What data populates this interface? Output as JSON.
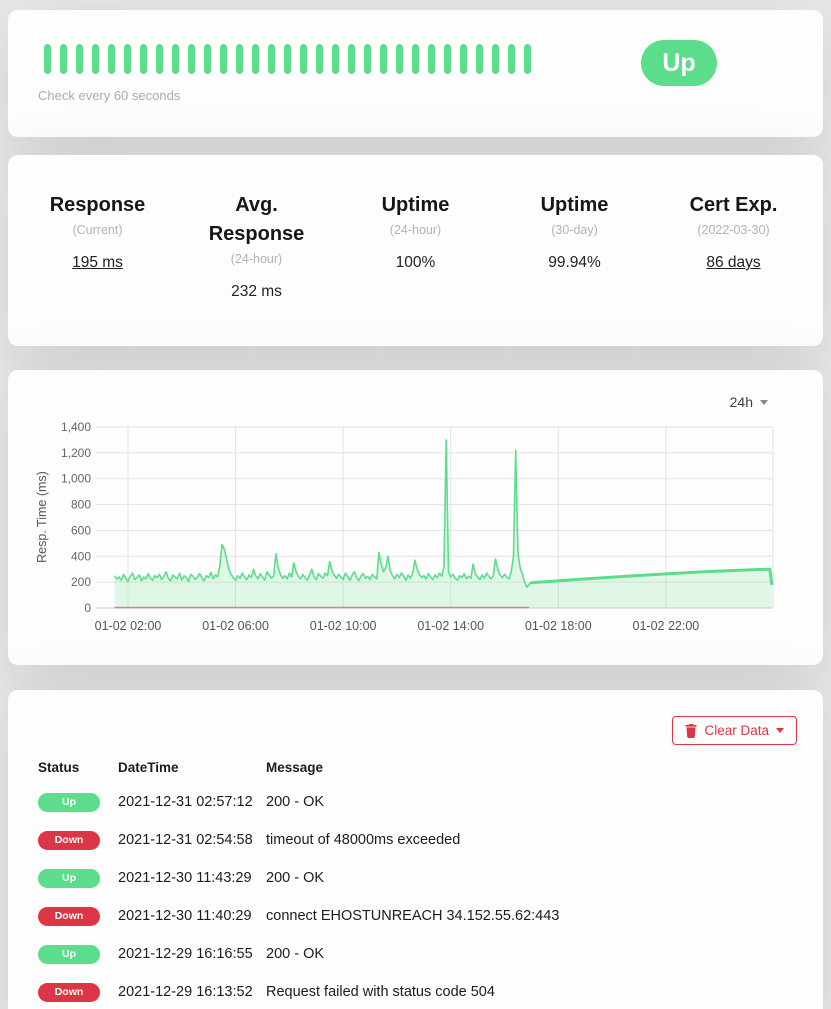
{
  "colors": {
    "green": "#5cdd8b",
    "red": "#dc3545",
    "fill": "rgba(92,221,139,0.18)",
    "grid": "#e3e3e3",
    "tick_text": "#666666"
  },
  "monitor": {
    "status_label": "Up",
    "check_interval": "Check every 60 seconds",
    "beat_count": 31
  },
  "stats": {
    "items": [
      {
        "title": "Response",
        "subtitle": "(Current)",
        "value": "195 ms",
        "underline": true
      },
      {
        "title": "Avg. Response",
        "subtitle": "(24-hour)",
        "value": "232 ms",
        "underline": false
      },
      {
        "title": "Uptime",
        "subtitle": "(24-hour)",
        "value": "100%",
        "underline": false
      },
      {
        "title": "Uptime",
        "subtitle": "(30-day)",
        "value": "99.94%",
        "underline": false
      },
      {
        "title": "Cert Exp.",
        "subtitle": "(2022-03-30)",
        "value": "86 days",
        "underline": true
      }
    ]
  },
  "chart": {
    "period_label": "24h"
  },
  "chart_data": {
    "type": "area",
    "title": "",
    "xlabel": "",
    "ylabel": "Resp. Time (ms)",
    "ylim": [
      0,
      1400
    ],
    "yticks": [
      0,
      200,
      400,
      600,
      800,
      1000,
      1200,
      1400
    ],
    "x_domain_minutes": [
      62,
      1559
    ],
    "xticks": [
      {
        "minute": 120,
        "label": "01-02 02:00"
      },
      {
        "minute": 360,
        "label": "01-02 06:00"
      },
      {
        "minute": 600,
        "label": "01-02 10:00"
      },
      {
        "minute": 840,
        "label": "01-02 14:00"
      },
      {
        "minute": 1080,
        "label": "01-02 18:00"
      },
      {
        "minute": 1320,
        "label": "01-02 22:00"
      }
    ],
    "grid": true,
    "legend": "none",
    "series": [
      {
        "name": "response-raw",
        "start_min": 90,
        "step_min": 5,
        "values": [
          250,
          225,
          240,
          215,
          260,
          230,
          205,
          245,
          270,
          220,
          235,
          255,
          210,
          240,
          225,
          265,
          230,
          215,
          250,
          235,
          260,
          220,
          245,
          280,
          230,
          210,
          255,
          240,
          225,
          270,
          215,
          250,
          235,
          205,
          260,
          245,
          220,
          240,
          265,
          230,
          210,
          250,
          235,
          275,
          225,
          255,
          240,
          330,
          490,
          455,
          380,
          300,
          260,
          235,
          215,
          250,
          230,
          270,
          240,
          220,
          255,
          235,
          300,
          250,
          225,
          265,
          240,
          215,
          280,
          255,
          230,
          245,
          420,
          310,
          260,
          230,
          250,
          225,
          270,
          240,
          350,
          280,
          245,
          225,
          260,
          235,
          215,
          255,
          300,
          240,
          220,
          265,
          245,
          230,
          270,
          250,
          360,
          290,
          255,
          230,
          260,
          240,
          220,
          270,
          245,
          215,
          255,
          280,
          235,
          210,
          250,
          265,
          230,
          245,
          220,
          260,
          240,
          225,
          430,
          340,
          280,
          310,
          400,
          290,
          250,
          225,
          260,
          235,
          270,
          245,
          215,
          255,
          230,
          265,
          370,
          300,
          260,
          235,
          250,
          225,
          265,
          240,
          220,
          255,
          235,
          270,
          245,
          320,
          1300,
          280,
          240,
          260,
          230,
          215,
          250,
          235,
          265,
          225,
          245,
          230,
          340,
          260,
          240,
          220,
          255,
          230,
          270,
          245,
          225,
          250,
          380,
          300,
          255,
          235,
          260,
          240,
          225,
          280,
          400,
          1220,
          420,
          310,
          260,
          200,
          160,
          185,
          195
        ]
      },
      {
        "name": "response-aggregate",
        "points": [
          [
            1020,
            195
          ],
          [
            1100,
            216
          ],
          [
            1180,
            234
          ],
          [
            1260,
            251
          ],
          [
            1340,
            268
          ],
          [
            1420,
            283
          ],
          [
            1500,
            294
          ],
          [
            1545,
            299
          ],
          [
            1552,
            300
          ],
          [
            1556,
            188
          ]
        ]
      }
    ],
    "down_marker": {
      "from_min": 90,
      "to_min": 1015,
      "value": 0
    }
  },
  "events": {
    "clear_label": "Clear Data",
    "columns": [
      "Status",
      "DateTime",
      "Message"
    ],
    "rows": [
      {
        "status": "Up",
        "datetime": "2021-12-31 02:57:12",
        "message": "200 - OK"
      },
      {
        "status": "Down",
        "datetime": "2021-12-31 02:54:58",
        "message": "timeout of 48000ms exceeded"
      },
      {
        "status": "Up",
        "datetime": "2021-12-30 11:43:29",
        "message": "200 - OK"
      },
      {
        "status": "Down",
        "datetime": "2021-12-30 11:40:29",
        "message": "connect EHOSTUNREACH 34.152.55.62:443"
      },
      {
        "status": "Up",
        "datetime": "2021-12-29 16:16:55",
        "message": "200 - OK"
      },
      {
        "status": "Down",
        "datetime": "2021-12-29 16:13:52",
        "message": "Request failed with status code 504"
      }
    ]
  }
}
